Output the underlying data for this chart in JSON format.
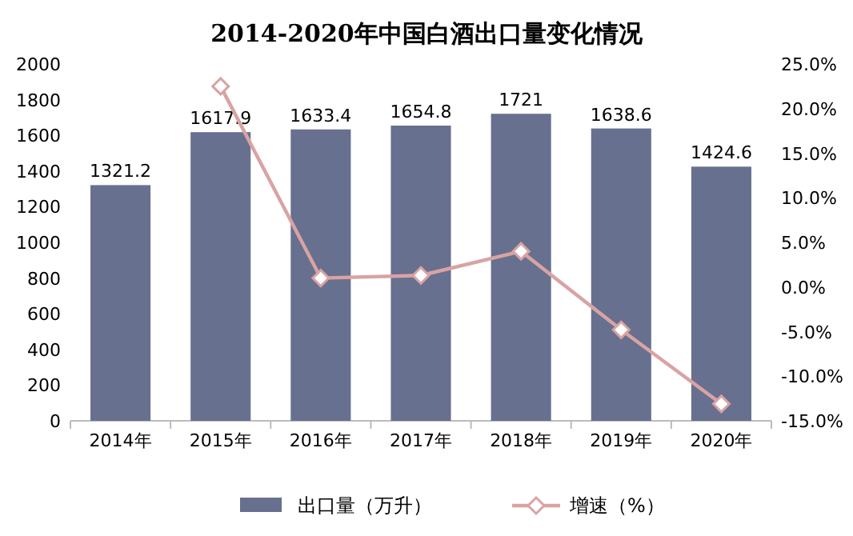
{
  "chart_data": {
    "type": "bar",
    "title": "2014-2020年中国白酒出口量变化情况",
    "categories": [
      "2014年",
      "2015年",
      "2016年",
      "2017年",
      "2018年",
      "2019年",
      "2020年"
    ],
    "series": [
      {
        "name": "出口量（万升）",
        "color": "#67708f",
        "values": [
          1321.2,
          1617.9,
          1633.4,
          1654.8,
          1721,
          1638.6,
          1424.6
        ],
        "value_labels": [
          "1321.2",
          "1617.9",
          "1633.4",
          "1654.8",
          "1721",
          "1638.6",
          "1424.6"
        ]
      },
      {
        "name": "增速（%）",
        "type": "line",
        "axis": "y2",
        "color": "#d9a3a3",
        "marker": "diamond",
        "values": [
          null,
          22.5,
          1.0,
          1.3,
          4.0,
          -4.8,
          -13.1
        ]
      }
    ],
    "ylim": [
      0,
      2000
    ],
    "yticks": [
      0,
      200,
      400,
      600,
      800,
      1000,
      1200,
      1400,
      1600,
      1800,
      2000
    ],
    "y2lim": [
      -15,
      25
    ],
    "y2ticks": [
      {
        "value": -15,
        "label": "-15.0%"
      },
      {
        "value": -10,
        "label": "-10.0%"
      },
      {
        "value": -5,
        "label": "-5.0%"
      },
      {
        "value": 0,
        "label": "0.0%"
      },
      {
        "value": 5,
        "label": "5.0%"
      },
      {
        "value": 10,
        "label": "10.0%"
      },
      {
        "value": 15,
        "label": "15.0%"
      },
      {
        "value": 20,
        "label": "20.0%"
      },
      {
        "value": 25,
        "label": "25.0%"
      }
    ],
    "grid": false,
    "legend": "bottom"
  }
}
